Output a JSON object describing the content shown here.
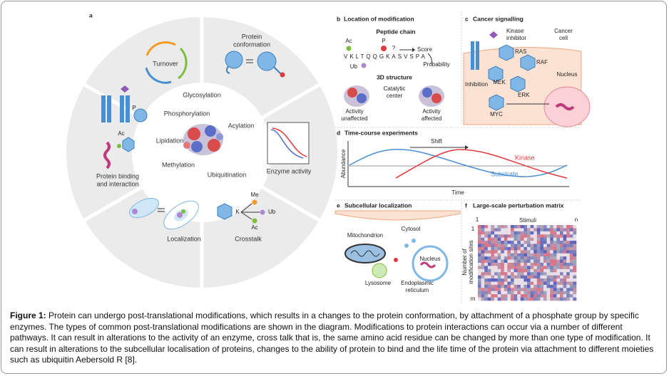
{
  "panel_a": {
    "label": "a",
    "turnover": "Turnover",
    "conformation": [
      "Protein",
      "conformation"
    ],
    "modifications": [
      "Glycosylation",
      "Phosphorylation",
      "Acylation",
      "Lipidation",
      "Methylation",
      "Ubiquitination"
    ],
    "enzyme_activity": "Enzyme activity",
    "binding": [
      "Protein binding",
      "and interaction"
    ],
    "binding_marks": [
      "P",
      "Ac"
    ],
    "localization": "Localization",
    "crosstalk": "Crosstalk",
    "crosstalk_marks": [
      "K",
      "Me",
      "Ub",
      "Ac"
    ]
  },
  "panel_b": {
    "label": "b",
    "title": "Location of modification",
    "peptide_title": "Peptide chain",
    "marks": [
      "Ac",
      "P",
      "?",
      "Ub"
    ],
    "sequence": "VKLTQQGKASVSPA",
    "score": "Score",
    "probability": "Probability",
    "structure_title": "3D structure",
    "catalytic": [
      "Catalytic",
      "center"
    ],
    "unaffected": [
      "Activity",
      "unaffected"
    ],
    "affected": [
      "Activity",
      "affected"
    ]
  },
  "panel_c": {
    "label": "c",
    "title": "Cancer signalling",
    "inhibitor": [
      "Kinase",
      "inhibitor"
    ],
    "cell": [
      "Cancer",
      "cell"
    ],
    "nodes": [
      "RAS",
      "RAF",
      "MEK",
      "ERK",
      "MYC"
    ],
    "inhibition": "Inhibition",
    "nucleus": "Nucleus"
  },
  "panel_d": {
    "label": "d",
    "title": "Time-course experiments",
    "shift": "Shift",
    "kinase": "Kinase",
    "substrate": "Substrate",
    "y_axis": "Abundance",
    "x_axis": "Time"
  },
  "panel_e": {
    "label": "e",
    "title": "Subcellular localization",
    "cytosol": "Cytosol",
    "mitochondrion": "Mitochondrion",
    "nucleus": "Nucleus",
    "lysosome": "Lysosome",
    "er": [
      "Endoplasmic",
      "reticulum"
    ]
  },
  "panel_f": {
    "label": "f",
    "title": "Large-scale perturbation matrix",
    "x_start": "1",
    "x_axis": "Stimuli",
    "x_end": "n",
    "y_start": "1",
    "y_end": "m",
    "y_axis": [
      "Number of",
      "modification sites"
    ]
  },
  "caption": {
    "label": "Figure 1:",
    "text": "Protein can undergo post-translational modifications, which results in a changes to the protein conformation, by attachment of a phosphate group by specific enzymes. The types of common post-translational modifications are shown in the diagram. Modifications to protein interactions can occur via a number of different pathways. It can result in alterations to the activity of an enzyme, cross talk that is, the same amino acid residue can be changed by more than one type of modification. It can result in alterations to the subcellular localisation of proteins, changes to the ability of protein to bind and the life time of the protein via attachment to different moieties such as ubiquitin Aebersold R [8]."
  }
}
